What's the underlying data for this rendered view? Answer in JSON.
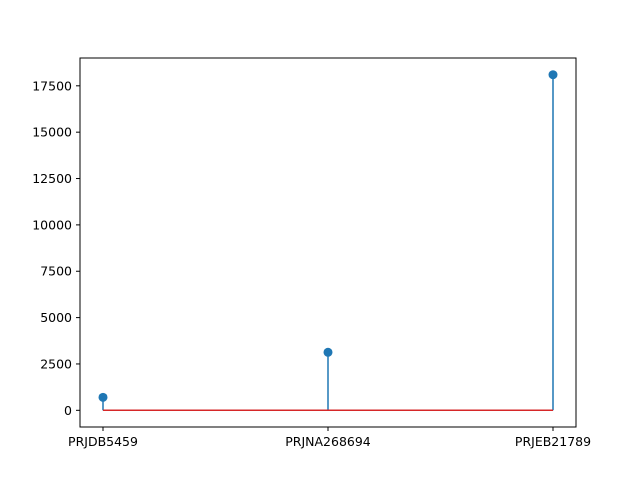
{
  "chart_data": {
    "type": "stem",
    "categories": [
      "PRJDB5459",
      "PRJNA268694",
      "PRJEB21789"
    ],
    "values": [
      700,
      3130,
      18100
    ],
    "baseline": 0,
    "title": "",
    "xlabel": "",
    "ylabel": "",
    "ylim": [
      -900,
      19000
    ],
    "yticks": [
      0,
      2500,
      5000,
      7500,
      10000,
      12500,
      15000,
      17500
    ],
    "ytick_labels": [
      "0",
      "2500",
      "5000",
      "7500",
      "10000",
      "12500",
      "15000",
      "17500"
    ],
    "grid": false,
    "colors": {
      "stem": "#1f77b4",
      "marker": "#1f77b4",
      "baseline": "#d62728",
      "axes": "#000000"
    }
  }
}
